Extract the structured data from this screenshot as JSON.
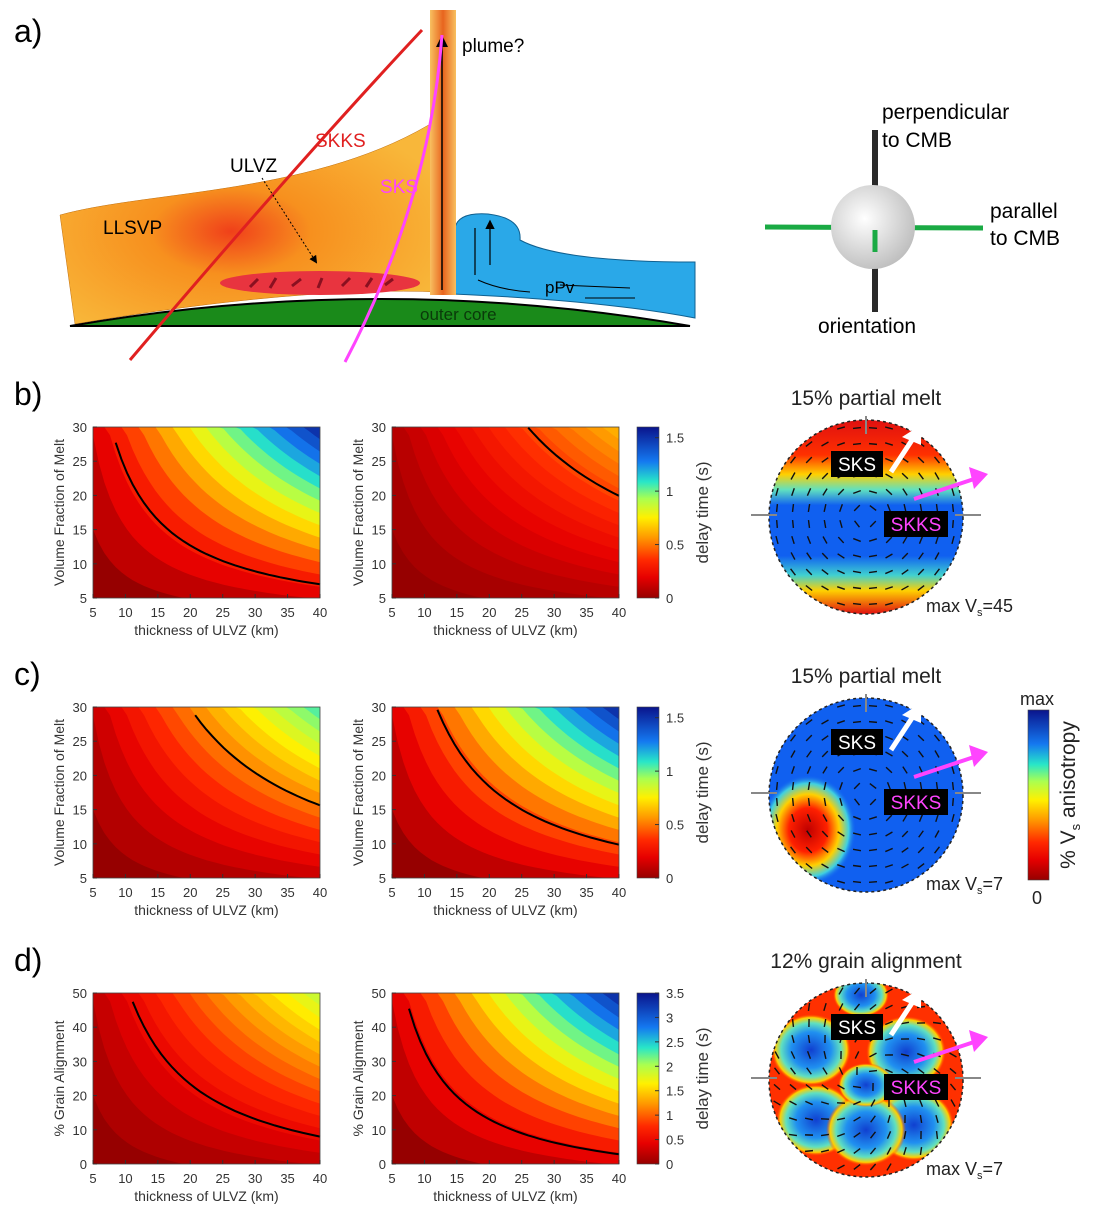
{
  "panel_a": {
    "label": "a)",
    "plume": "plume?",
    "skks": "SKKS",
    "ulvz": "ULVZ",
    "sks": "SKS",
    "llsvp": "LLSVP",
    "ppv": "pPv",
    "outer_core": "outer core",
    "perpendicular": [
      "perpendicular",
      "to CMB"
    ],
    "parallel": [
      "parallel",
      "to CMB"
    ],
    "orientation": "orientation"
  },
  "rows": [
    {
      "label": "b)",
      "plots": [
        {
          "xlabel": "thickness of ULVZ (km)",
          "ylabel": "Volume Fraction of Melt",
          "xticks": [
            5,
            10,
            15,
            20,
            25,
            30,
            35,
            40
          ],
          "yticks": [
            5,
            10,
            15,
            20,
            25,
            30
          ]
        },
        {
          "xlabel": "thickness of ULVZ (km)",
          "ylabel": "Volume Fraction of Melt",
          "xticks": [
            5,
            10,
            15,
            20,
            25,
            30,
            35,
            40
          ],
          "yticks": [
            5,
            10,
            15,
            20,
            25,
            30
          ]
        }
      ],
      "colorbar": {
        "label": "delay time (s)",
        "lim": [
          0,
          1.6
        ],
        "ticks": [
          0,
          0.5,
          1,
          1.5
        ]
      },
      "sphere": {
        "title": "15% partial melt",
        "sks": "SKS",
        "skks": "SKKS",
        "max": [
          "max V",
          "s",
          "=45"
        ]
      }
    },
    {
      "label": "c)",
      "plots": [
        {
          "xlabel": "thickness of ULVZ (km)",
          "ylabel": "Volume Fraction of Melt",
          "xticks": [
            5,
            10,
            15,
            20,
            25,
            30,
            35,
            40
          ],
          "yticks": [
            5,
            10,
            15,
            20,
            25,
            30
          ]
        },
        {
          "xlabel": "thickness of ULVZ (km)",
          "ylabel": "Volume Fraction of Melt",
          "xticks": [
            5,
            10,
            15,
            20,
            25,
            30,
            35,
            40
          ],
          "yticks": [
            5,
            10,
            15,
            20,
            25,
            30
          ]
        }
      ],
      "colorbar": {
        "label": "delay time (s)",
        "lim": [
          0,
          1.6
        ],
        "ticks": [
          0,
          0.5,
          1,
          1.5
        ]
      },
      "sphere": {
        "title": "15% partial melt",
        "sks": "SKS",
        "skks": "SKKS",
        "max": [
          "max V",
          "s",
          "=7"
        ]
      }
    },
    {
      "label": "d)",
      "plots": [
        {
          "xlabel": "thickness of ULVZ (km)",
          "ylabel": "% Grain Alignment",
          "xticks": [
            5,
            10,
            15,
            20,
            25,
            30,
            35,
            40
          ],
          "yticks": [
            0,
            10,
            20,
            30,
            40,
            50
          ]
        },
        {
          "xlabel": "thickness of ULVZ (km)",
          "ylabel": "% Grain Alignment",
          "xticks": [
            5,
            10,
            15,
            20,
            25,
            30,
            35,
            40
          ],
          "yticks": [
            0,
            10,
            20,
            30,
            40,
            50
          ]
        }
      ],
      "colorbar": {
        "label": "delay time (s)",
        "lim": [
          0,
          3.5
        ],
        "ticks": [
          0,
          0.5,
          1,
          1.5,
          2,
          2.5,
          3,
          3.5
        ]
      },
      "sphere": {
        "title": "12% grain alignment",
        "sks": "SKS",
        "skks": "SKKS",
        "max": [
          "max V",
          "s",
          "=7"
        ]
      }
    }
  ],
  "anisotropy_bar": {
    "label": [
      "% V",
      "s",
      " anisotropy"
    ],
    "max": "max",
    "min": "0"
  }
}
